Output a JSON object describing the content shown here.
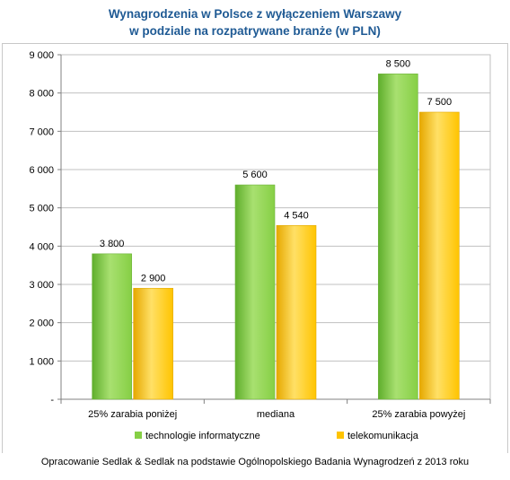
{
  "chart_data": {
    "type": "bar",
    "title": "Wynagrodzenia w Polsce z wyłączeniem Warszawy",
    "subtitle": "w podziale na rozpatrywane branże (w PLN)",
    "categories": [
      "25% zarabia poniżej",
      "mediana",
      "25% zarabia powyżej"
    ],
    "series": [
      {
        "name": "technologie informatyczne",
        "values": [
          3800,
          5600,
          8500
        ],
        "labels": [
          "3 800",
          "5 600",
          "8 500"
        ],
        "color": "#86cf45"
      },
      {
        "name": "telekomunikacja",
        "values": [
          2900,
          4540,
          7500
        ],
        "labels": [
          "2 900",
          "4 540",
          "7 500"
        ],
        "color": "#ffc400"
      }
    ],
    "ylim": [
      0,
      9000
    ],
    "yticks": [
      {
        "value": 0,
        "label": "-"
      },
      {
        "value": 1000,
        "label": "1 000"
      },
      {
        "value": 2000,
        "label": "2 000"
      },
      {
        "value": 3000,
        "label": "3 000"
      },
      {
        "value": 4000,
        "label": "4 000"
      },
      {
        "value": 5000,
        "label": "5 000"
      },
      {
        "value": 6000,
        "label": "6 000"
      },
      {
        "value": 7000,
        "label": "7 000"
      },
      {
        "value": 8000,
        "label": "8 000"
      },
      {
        "value": 9000,
        "label": "9 000"
      }
    ],
    "xlabel": "",
    "ylabel": "",
    "grid": true,
    "legend": "bottom"
  },
  "source_note": "Opracowanie Sedlak & Sedlak na podstawie Ogólnopolskiego Badania Wynagrodzeń z 2013 roku"
}
